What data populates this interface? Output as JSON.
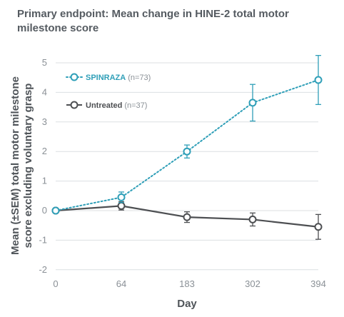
{
  "chart_data": {
    "type": "line",
    "title": "Primary endpoint: Mean change in HINE-2 total motor milestone score",
    "xlabel": "Day",
    "ylabel": "Mean (±SEM) total motor milestone score excluding voluntary grasp",
    "x_ticks": [
      "0",
      "64",
      "183",
      "302",
      "394"
    ],
    "y_ticks": [
      "-2",
      "-1",
      "0",
      "1",
      "2",
      "3",
      "4",
      "5"
    ],
    "ylim": [
      -2,
      5.3
    ],
    "series": [
      {
        "name": "SPINRAZA",
        "n_label": "(n=73)",
        "color": "#2f9fb8",
        "style": "dotted",
        "points": [
          {
            "x": 0,
            "y": 0.0,
            "err": 0.0
          },
          {
            "x": 64,
            "y": 0.45,
            "err": 0.18
          },
          {
            "x": 183,
            "y": 2.0,
            "err": 0.22
          },
          {
            "x": 302,
            "y": 3.65,
            "err": 0.62
          },
          {
            "x": 394,
            "y": 4.42,
            "err": 0.83
          }
        ]
      },
      {
        "name": "Untreated",
        "n_label": "(n=37)",
        "color": "#4d4f52",
        "style": "solid",
        "points": [
          {
            "x": 0,
            "y": 0.0,
            "err": 0.0
          },
          {
            "x": 64,
            "y": 0.16,
            "err": 0.14
          },
          {
            "x": 183,
            "y": -0.22,
            "err": 0.18
          },
          {
            "x": 302,
            "y": -0.3,
            "err": 0.22
          },
          {
            "x": 394,
            "y": -0.55,
            "err": 0.42
          }
        ]
      }
    ]
  }
}
